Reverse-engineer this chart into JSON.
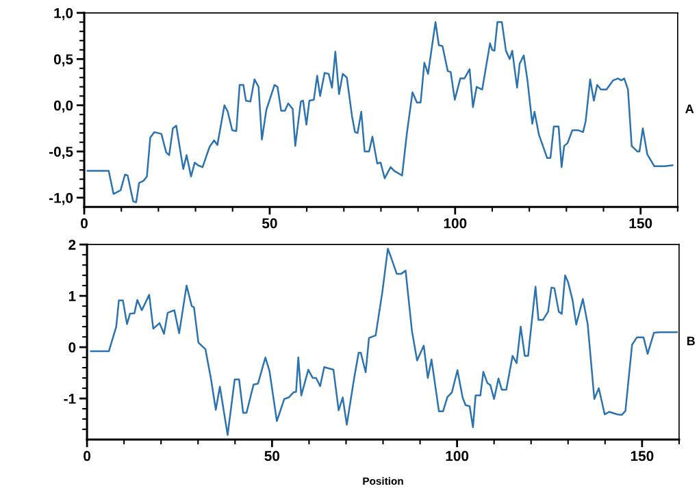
{
  "chart_data": [
    {
      "type": "line",
      "xlim": [
        0,
        160
      ],
      "ylim": [
        -1.1,
        1.0
      ],
      "xticks": [
        {
          "value": 0,
          "label": "0"
        },
        {
          "value": 10,
          "label": null
        },
        {
          "value": 20,
          "label": null
        },
        {
          "value": 30,
          "label": null
        },
        {
          "value": 40,
          "label": null
        },
        {
          "value": 50,
          "label": "50"
        },
        {
          "value": 60,
          "label": null
        },
        {
          "value": 70,
          "label": null
        },
        {
          "value": 80,
          "label": null
        },
        {
          "value": 90,
          "label": null
        },
        {
          "value": 100,
          "label": "100"
        },
        {
          "value": 110,
          "label": null
        },
        {
          "value": 120,
          "label": null
        },
        {
          "value": 130,
          "label": null
        },
        {
          "value": 140,
          "label": null
        },
        {
          "value": 150,
          "label": "150"
        },
        {
          "value": 160,
          "label": null
        }
      ],
      "yticks": [
        {
          "value": -1.0,
          "label": "-1,0"
        },
        {
          "value": -0.9,
          "label": null
        },
        {
          "value": -0.8,
          "label": null
        },
        {
          "value": -0.7,
          "label": null
        },
        {
          "value": -0.6,
          "label": null
        },
        {
          "value": -0.5,
          "label": "-0,5"
        },
        {
          "value": -0.4,
          "label": null
        },
        {
          "value": -0.3,
          "label": null
        },
        {
          "value": -0.2,
          "label": null
        },
        {
          "value": -0.1,
          "label": null
        },
        {
          "value": 0.0,
          "label": "0,0"
        },
        {
          "value": 0.1,
          "label": null
        },
        {
          "value": 0.2,
          "label": null
        },
        {
          "value": 0.3,
          "label": null
        },
        {
          "value": 0.4,
          "label": null
        },
        {
          "value": 0.5,
          "label": "0,5"
        },
        {
          "value": 0.6,
          "label": null
        },
        {
          "value": 0.7,
          "label": null
        },
        {
          "value": 0.8,
          "label": null
        },
        {
          "value": 0.9,
          "label": null
        },
        {
          "value": 1.0,
          "label": "1,0"
        }
      ],
      "grid": false,
      "legend": false,
      "marker": "none",
      "line_style": "solid",
      "annotations": [
        "A"
      ],
      "series": [
        {
          "color": "#2a72b0",
          "x": [
            0.9,
            6.6,
            7.9,
            9.8,
            11,
            11.7,
            13.2,
            14,
            14.8,
            15.9,
            16.9,
            17.8,
            18.9,
            20.8,
            22.1,
            22.9,
            23.9,
            24.8,
            26.7,
            27.6,
            28.8,
            29.8,
            30.7,
            31.9,
            33.8,
            35,
            35.9,
            37.8,
            38.7,
            39.9,
            41,
            41.9,
            42.9,
            43.6,
            44.8,
            45.9,
            47,
            47.9,
            49.1,
            51.3,
            52.1,
            53.1,
            54.1,
            55,
            56.2,
            56.9,
            58.4,
            59,
            59.9,
            60.7,
            61.9,
            62.8,
            63.6,
            64.8,
            65.9,
            66.8,
            67.7,
            68.7,
            69.7,
            70.8,
            72.2,
            73,
            73.7,
            74.7,
            75.6,
            76.8,
            77.7,
            79,
            79.9,
            81,
            82.6,
            83.6,
            85.7,
            87,
            88.5,
            89.7,
            90.7,
            91.7,
            92.7,
            94.7,
            95.6,
            96.6,
            98,
            98.8,
            99.9,
            101.4,
            102.5,
            103.9,
            104.8,
            105.8,
            107.3,
            109.4,
            110,
            110.6,
            111.4,
            112.6,
            113.7,
            114.7,
            115.4,
            116.7,
            117.4,
            118.5,
            119.5,
            120.8,
            121.4,
            122.6,
            124.8,
            125.7,
            126.6,
            127.9,
            128.7,
            129.4,
            130.3,
            131.6,
            133.1,
            134.5,
            135.2,
            136.4,
            137.4,
            138.3,
            139.3,
            140.8,
            142.6,
            143.9,
            144.8,
            145.6,
            146.6,
            147.6,
            149.1,
            149.7,
            150.6,
            151.8,
            153.7,
            156.5,
            158.6
          ],
          "values": [
            -0.71,
            -0.71,
            -0.96,
            -0.92,
            -0.75,
            -0.76,
            -1.04,
            -1.05,
            -0.84,
            -0.82,
            -0.77,
            -0.35,
            -0.29,
            -0.31,
            -0.51,
            -0.54,
            -0.25,
            -0.22,
            -0.69,
            -0.54,
            -0.77,
            -0.62,
            -0.65,
            -0.67,
            -0.45,
            -0.38,
            -0.43,
            0.0,
            -0.07,
            -0.27,
            -0.28,
            0.22,
            0.22,
            0.05,
            0.04,
            0.28,
            0.2,
            -0.37,
            -0.05,
            0.22,
            0.2,
            -0.06,
            -0.06,
            0.02,
            -0.04,
            -0.44,
            0.04,
            0.05,
            -0.21,
            0.05,
            0.06,
            0.32,
            0.1,
            0.35,
            0.34,
            0.19,
            0.58,
            0.12,
            0.34,
            0.3,
            -0.12,
            -0.29,
            -0.3,
            -0.07,
            -0.5,
            -0.5,
            -0.34,
            -0.63,
            -0.62,
            -0.79,
            -0.67,
            -0.71,
            -0.76,
            -0.3,
            0.14,
            0.03,
            0.03,
            0.46,
            0.34,
            0.9,
            0.65,
            0.64,
            0.37,
            0.36,
            0.06,
            0.29,
            0.29,
            0.39,
            -0.02,
            0.2,
            0.17,
            0.67,
            0.6,
            0.59,
            0.9,
            0.9,
            0.59,
            0.5,
            0.59,
            0.19,
            0.45,
            0.54,
            0.27,
            -0.2,
            -0.07,
            -0.32,
            -0.57,
            -0.57,
            -0.23,
            -0.23,
            -0.67,
            -0.44,
            -0.41,
            -0.27,
            -0.27,
            -0.29,
            -0.17,
            0.28,
            0.05,
            0.22,
            0.17,
            0.17,
            0.27,
            0.29,
            0.27,
            0.29,
            0.17,
            -0.44,
            -0.5,
            -0.5,
            -0.25,
            -0.53,
            -0.66,
            -0.66,
            -0.65
          ]
        }
      ]
    },
    {
      "type": "line",
      "xlim": [
        0,
        160
      ],
      "ylim": [
        -1.8,
        2
      ],
      "xlabel": "Position",
      "xticks": [
        {
          "value": 0,
          "label": "0"
        },
        {
          "value": 10,
          "label": null
        },
        {
          "value": 20,
          "label": null
        },
        {
          "value": 30,
          "label": null
        },
        {
          "value": 40,
          "label": null
        },
        {
          "value": 50,
          "label": "50"
        },
        {
          "value": 60,
          "label": null
        },
        {
          "value": 70,
          "label": null
        },
        {
          "value": 80,
          "label": null
        },
        {
          "value": 90,
          "label": null
        },
        {
          "value": 100,
          "label": "100"
        },
        {
          "value": 110,
          "label": null
        },
        {
          "value": 120,
          "label": null
        },
        {
          "value": 130,
          "label": null
        },
        {
          "value": 140,
          "label": null
        },
        {
          "value": 150,
          "label": "150"
        },
        {
          "value": 160,
          "label": null
        }
      ],
      "yticks": [
        {
          "value": -1.6,
          "label": null
        },
        {
          "value": -1.4,
          "label": null
        },
        {
          "value": -1.2,
          "label": null
        },
        -1,
        {
          "value": -0.8,
          "label": null
        },
        {
          "value": -0.6,
          "label": null
        },
        {
          "value": -0.4,
          "label": null
        },
        {
          "value": -0.2,
          "label": null
        },
        0,
        {
          "value": 0.2,
          "label": null
        },
        {
          "value": 0.4,
          "label": null
        },
        {
          "value": 0.6,
          "label": null
        },
        {
          "value": 0.8,
          "label": null
        },
        1,
        {
          "value": 1.2,
          "label": null
        },
        {
          "value": 1.4,
          "label": null
        },
        {
          "value": 1.6,
          "label": null
        },
        {
          "value": 1.8,
          "label": null
        },
        2
      ],
      "grid": false,
      "legend": false,
      "marker": "none",
      "line_style": "solid",
      "annotations": [
        "B"
      ],
      "series": [
        {
          "color": "#2a72b0",
          "x": [
            1.05,
            5.9,
            7.9,
            8.6,
            9.7,
            10.8,
            11.6,
            12.8,
            13.6,
            14.8,
            16.8,
            17.9,
            19.6,
            20.8,
            21.8,
            23.6,
            24.9,
            26.9,
            28.3,
            28.9,
            30.1,
            32,
            33.5,
            34.8,
            35.9,
            38,
            39.9,
            41.1,
            42.2,
            43.1,
            45,
            46.2,
            48.2,
            49.3,
            51.3,
            53.3,
            54.5,
            55.8,
            56.5,
            57.1,
            57.9,
            59.8,
            61,
            61.9,
            63,
            64.1,
            66.6,
            68,
            69.1,
            70.2,
            72.2,
            73.4,
            74,
            75.3,
            76.2,
            78,
            79.8,
            81.3,
            82.3,
            83.7,
            84.9,
            86.1,
            87.8,
            89.2,
            91,
            92.1,
            93.1,
            95.1,
            96.2,
            97.4,
            98.6,
            100.1,
            101.5,
            102.3,
            103.4,
            104.3,
            105,
            106.3,
            107.1,
            108.2,
            109,
            110,
            111.2,
            112.1,
            113.3,
            115,
            116.1,
            117.2,
            118.3,
            119.2,
            121.2,
            122,
            123.2,
            124.6,
            125.5,
            126.3,
            127.5,
            128.3,
            129.2,
            130,
            131.2,
            132.2,
            134,
            135.3,
            137.1,
            138.3,
            139.9,
            141.1,
            143.3,
            144.5,
            145.5,
            147.3,
            148.6,
            150.4,
            151.5,
            153.2,
            154.7,
            159.4
          ],
          "values": [
            -0.08,
            -0.08,
            0.4,
            0.91,
            0.91,
            0.45,
            0.65,
            0.66,
            0.92,
            0.72,
            1.02,
            0.36,
            0.47,
            0.26,
            0.67,
            0.72,
            0.27,
            1.2,
            0.8,
            0.78,
            0.09,
            -0.04,
            -0.62,
            -1.22,
            -0.77,
            -1.71,
            -0.63,
            -0.63,
            -1.28,
            -1.28,
            -0.73,
            -0.71,
            -0.2,
            -0.46,
            -1.44,
            -1.01,
            -0.98,
            -0.88,
            -0.87,
            -0.2,
            -0.94,
            -0.44,
            -0.6,
            -0.6,
            -0.76,
            -0.39,
            -0.44,
            -1.23,
            -0.98,
            -1.51,
            -0.6,
            -0.11,
            -0.11,
            -0.49,
            0.18,
            0.23,
            1.07,
            1.92,
            1.72,
            1.43,
            1.43,
            1.49,
            0.32,
            -0.26,
            0.03,
            -0.6,
            -0.24,
            -1.25,
            -1.25,
            -0.97,
            -0.88,
            -0.45,
            -0.98,
            -1.13,
            -1.15,
            -1.56,
            -0.94,
            -0.94,
            -0.48,
            -0.7,
            -0.74,
            -1.01,
            -0.61,
            -0.83,
            -0.83,
            -0.17,
            -0.31,
            0.4,
            -0.17,
            -0.17,
            1.18,
            0.53,
            0.53,
            0.69,
            1.16,
            1.15,
            0.69,
            0.65,
            1.4,
            1.27,
            0.92,
            0.44,
            0.94,
            0.45,
            -1.01,
            -0.8,
            -1.31,
            -1.26,
            -1.31,
            -1.32,
            -1.24,
            0.05,
            0.19,
            0.19,
            -0.13,
            0.28,
            0.29,
            0.29
          ]
        }
      ]
    }
  ]
}
